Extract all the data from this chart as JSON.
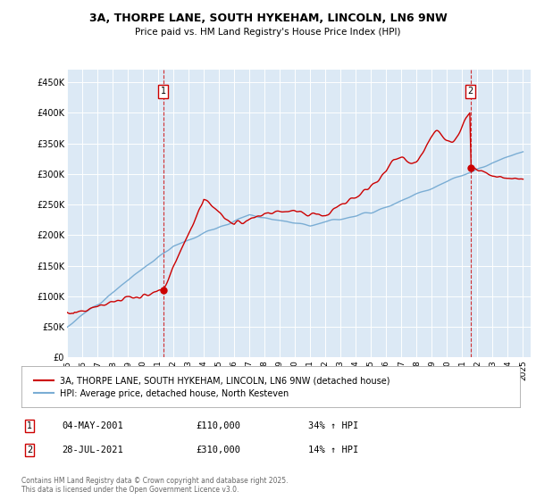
{
  "title_line1": "3A, THORPE LANE, SOUTH HYKEHAM, LINCOLN, LN6 9NW",
  "title_line2": "Price paid vs. HM Land Registry's House Price Index (HPI)",
  "ylim": [
    0,
    470000
  ],
  "yticks": [
    0,
    50000,
    100000,
    150000,
    200000,
    250000,
    300000,
    350000,
    400000,
    450000
  ],
  "ytick_labels": [
    "£0",
    "£50K",
    "£100K",
    "£150K",
    "£200K",
    "£250K",
    "£300K",
    "£350K",
    "£400K",
    "£450K"
  ],
  "red_color": "#cc0000",
  "blue_color": "#7aadd4",
  "bg_color": "#dce9f5",
  "grid_color": "#ffffff",
  "dashed_color": "#cc0000",
  "legend_label_red": "3A, THORPE LANE, SOUTH HYKEHAM, LINCOLN, LN6 9NW (detached house)",
  "legend_label_blue": "HPI: Average price, detached house, North Kesteven",
  "footer": "Contains HM Land Registry data © Crown copyright and database right 2025.\nThis data is licensed under the Open Government Licence v3.0.",
  "year1": 2001.33,
  "year2": 2021.54,
  "val1": 110000,
  "val2": 310000
}
